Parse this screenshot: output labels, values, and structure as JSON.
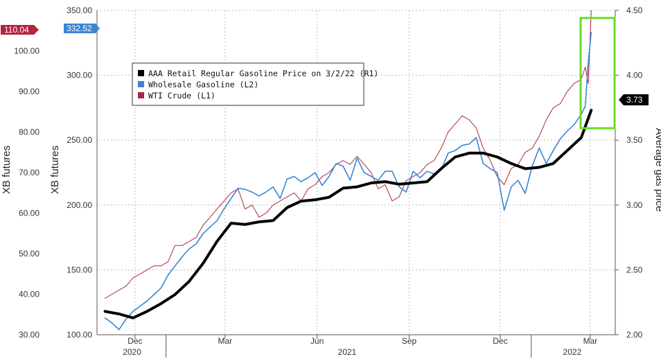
{
  "chart_data": {
    "type": "line",
    "title": "",
    "x_axis": {
      "month_ticks": [
        "Dec",
        "Mar",
        "Jun",
        "Sep",
        "Dec",
        "Mar"
      ],
      "year_labels": [
        "2020",
        "2021",
        "2022"
      ]
    },
    "y_axes": {
      "l1": {
        "label": "XB futures",
        "range": [
          30,
          110
        ],
        "ticks": [
          "30.00",
          "40.00",
          "50.00",
          "60.00",
          "70.00",
          "80.00",
          "90.00",
          "100.00"
        ]
      },
      "l2": {
        "label": "XB futures",
        "range": [
          100,
          350
        ],
        "ticks": [
          "100.00",
          "150.00",
          "200.00",
          "250.00",
          "300.00",
          "350.00"
        ]
      },
      "r1": {
        "label": "Average gas price",
        "range": [
          2.0,
          4.5
        ],
        "ticks": [
          "2.00",
          "2.50",
          "3.00",
          "3.50",
          "4.00",
          "4.50"
        ]
      }
    },
    "last_value_flags": {
      "wti": {
        "text": "110.04",
        "color": "#b8213f"
      },
      "wholesale": {
        "text": "332.52",
        "color": "#3a86d4"
      },
      "retail": {
        "text": "3.73",
        "color": "#000000"
      }
    },
    "legend": [
      {
        "label": "AAA Retail Regular Gasoline Price on 3/2/22 (R1)",
        "color": "#000000"
      },
      {
        "label": "Wholesale Gasoline (L2)",
        "color": "#3a86d4"
      },
      {
        "label": "WTI Crude (L1)",
        "color": "#a8283f"
      }
    ],
    "series": [
      {
        "name": "AAA Retail Regular Gasoline Price on 3/2/22 (R1)",
        "axis": "r1",
        "color": "#000000",
        "x": [
          "2020-11-01",
          "2020-11-15",
          "2020-11-29",
          "2020-12-13",
          "2020-12-27",
          "2021-01-10",
          "2021-01-24",
          "2021-02-07",
          "2021-02-21",
          "2021-03-07",
          "2021-03-21",
          "2021-04-04",
          "2021-04-18",
          "2021-05-02",
          "2021-05-16",
          "2021-05-30",
          "2021-06-13",
          "2021-06-27",
          "2021-07-11",
          "2021-07-25",
          "2021-08-08",
          "2021-08-22",
          "2021-09-05",
          "2021-09-19",
          "2021-10-03",
          "2021-10-17",
          "2021-10-31",
          "2021-11-14",
          "2021-11-28",
          "2021-12-12",
          "2021-12-26",
          "2022-01-09",
          "2022-01-23",
          "2022-02-06",
          "2022-02-20",
          "2022-03-02"
        ],
        "values": [
          2.18,
          2.16,
          2.13,
          2.18,
          2.24,
          2.31,
          2.41,
          2.55,
          2.72,
          2.86,
          2.85,
          2.87,
          2.88,
          2.98,
          3.03,
          3.04,
          3.06,
          3.13,
          3.14,
          3.17,
          3.18,
          3.16,
          3.17,
          3.18,
          3.28,
          3.37,
          3.4,
          3.4,
          3.37,
          3.32,
          3.28,
          3.29,
          3.32,
          3.42,
          3.52,
          3.73
        ]
      },
      {
        "name": "Wholesale Gasoline (L2)",
        "axis": "l2",
        "color": "#3a86d4",
        "x": [
          "2020-11-01",
          "2020-11-08",
          "2020-11-15",
          "2020-11-22",
          "2020-11-29",
          "2020-12-06",
          "2020-12-13",
          "2020-12-20",
          "2020-12-27",
          "2021-01-03",
          "2021-01-10",
          "2021-01-17",
          "2021-01-24",
          "2021-01-31",
          "2021-02-07",
          "2021-02-14",
          "2021-02-21",
          "2021-02-28",
          "2021-03-07",
          "2021-03-14",
          "2021-03-21",
          "2021-03-28",
          "2021-04-04",
          "2021-04-11",
          "2021-04-18",
          "2021-04-25",
          "2021-05-02",
          "2021-05-09",
          "2021-05-16",
          "2021-05-23",
          "2021-05-30",
          "2021-06-06",
          "2021-06-13",
          "2021-06-20",
          "2021-06-27",
          "2021-07-04",
          "2021-07-11",
          "2021-07-18",
          "2021-07-25",
          "2021-08-01",
          "2021-08-08",
          "2021-08-15",
          "2021-08-22",
          "2021-08-29",
          "2021-09-05",
          "2021-09-12",
          "2021-09-19",
          "2021-09-26",
          "2021-10-03",
          "2021-10-10",
          "2021-10-17",
          "2021-10-24",
          "2021-10-31",
          "2021-11-07",
          "2021-11-14",
          "2021-11-21",
          "2021-11-28",
          "2021-12-05",
          "2021-12-12",
          "2021-12-19",
          "2021-12-26",
          "2022-01-02",
          "2022-01-09",
          "2022-01-16",
          "2022-01-23",
          "2022-01-30",
          "2022-02-06",
          "2022-02-13",
          "2022-02-20",
          "2022-02-24",
          "2022-02-27",
          "2022-03-02"
        ],
        "values": [
          113,
          109,
          104,
          112,
          118,
          122,
          126,
          131,
          136,
          146,
          153,
          160,
          166,
          170,
          178,
          183,
          188,
          197,
          205,
          213,
          212,
          210,
          207,
          210,
          214,
          205,
          220,
          222,
          218,
          221,
          225,
          215,
          222,
          232,
          230,
          219,
          236,
          225,
          222,
          219,
          226,
          226,
          214,
          210,
          226,
          221,
          226,
          224,
          227,
          240,
          242,
          246,
          247,
          252,
          232,
          228,
          225,
          196,
          214,
          219,
          209,
          230,
          244,
          232,
          242,
          251,
          257,
          262,
          270,
          276,
          310,
          333
        ]
      },
      {
        "name": "WTI Crude (L1)",
        "axis": "l1",
        "color": "#a8283f",
        "x": [
          "2020-11-01",
          "2020-11-08",
          "2020-11-15",
          "2020-11-22",
          "2020-11-29",
          "2020-12-06",
          "2020-12-13",
          "2020-12-20",
          "2020-12-27",
          "2021-01-03",
          "2021-01-10",
          "2021-01-17",
          "2021-01-24",
          "2021-01-31",
          "2021-02-07",
          "2021-02-14",
          "2021-02-21",
          "2021-02-28",
          "2021-03-07",
          "2021-03-14",
          "2021-03-21",
          "2021-03-28",
          "2021-04-04",
          "2021-04-11",
          "2021-04-18",
          "2021-04-25",
          "2021-05-02",
          "2021-05-09",
          "2021-05-16",
          "2021-05-23",
          "2021-05-30",
          "2021-06-06",
          "2021-06-13",
          "2021-06-20",
          "2021-06-27",
          "2021-07-04",
          "2021-07-11",
          "2021-07-18",
          "2021-07-25",
          "2021-08-01",
          "2021-08-08",
          "2021-08-15",
          "2021-08-22",
          "2021-08-29",
          "2021-09-05",
          "2021-09-12",
          "2021-09-19",
          "2021-09-26",
          "2021-10-03",
          "2021-10-10",
          "2021-10-17",
          "2021-10-24",
          "2021-10-31",
          "2021-11-07",
          "2021-11-14",
          "2021-11-21",
          "2021-11-28",
          "2021-12-05",
          "2021-12-12",
          "2021-12-19",
          "2021-12-26",
          "2022-01-02",
          "2022-01-09",
          "2022-01-16",
          "2022-01-23",
          "2022-01-30",
          "2022-02-06",
          "2022-02-13",
          "2022-02-20",
          "2022-02-24",
          "2022-02-27",
          "2022-03-02"
        ],
        "values": [
          39,
          40,
          41,
          42,
          44,
          45,
          46,
          47,
          47,
          48,
          52,
          52,
          53,
          54,
          57,
          59,
          61,
          63,
          65,
          66,
          61,
          62,
          59,
          60,
          62,
          63,
          64,
          65,
          63,
          66,
          67,
          69,
          70,
          72,
          73,
          72,
          74,
          72,
          70,
          66,
          67,
          63,
          64,
          68,
          69,
          70,
          72,
          73,
          76,
          80,
          82,
          84,
          83,
          81,
          76,
          73,
          69,
          67,
          71,
          72,
          75,
          76,
          79,
          83,
          86,
          87,
          90,
          92,
          93,
          96,
          92,
          110
        ]
      }
    ]
  }
}
